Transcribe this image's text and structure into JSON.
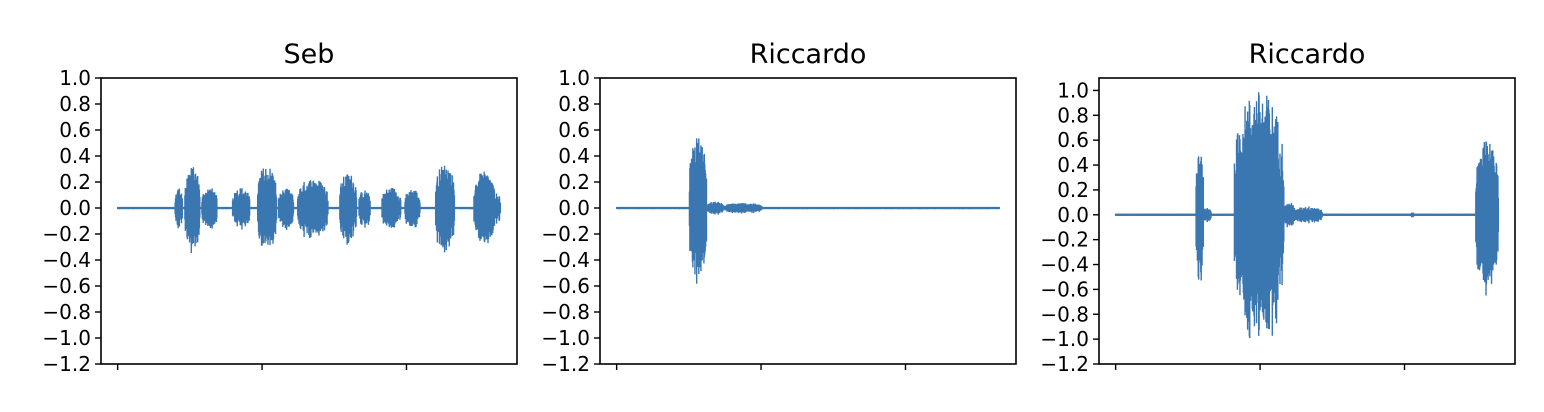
{
  "chart_data": [
    {
      "type": "line",
      "title": "Seb",
      "color": "#3a76b0",
      "ylim": [
        -1.2,
        1.0
      ],
      "yticks": [
        "1.0",
        "0.8",
        "0.6",
        "0.4",
        "0.2",
        "0.0",
        "−0.2",
        "−0.4",
        "−0.6",
        "−0.8",
        "−1.0",
        "−1.2"
      ],
      "xticks_count": 3,
      "xtick_labels_shown": false,
      "grid": false,
      "bursts": [
        {
          "start": 0.15,
          "end": 0.17,
          "amp": 0.16
        },
        {
          "start": 0.175,
          "end": 0.215,
          "amp": 0.32
        },
        {
          "start": 0.22,
          "end": 0.26,
          "amp": 0.16
        },
        {
          "start": 0.3,
          "end": 0.345,
          "amp": 0.16
        },
        {
          "start": 0.365,
          "end": 0.415,
          "amp": 0.33
        },
        {
          "start": 0.42,
          "end": 0.46,
          "amp": 0.15
        },
        {
          "start": 0.47,
          "end": 0.55,
          "amp": 0.23
        },
        {
          "start": 0.58,
          "end": 0.625,
          "amp": 0.27
        },
        {
          "start": 0.63,
          "end": 0.66,
          "amp": 0.14
        },
        {
          "start": 0.69,
          "end": 0.74,
          "amp": 0.16
        },
        {
          "start": 0.75,
          "end": 0.79,
          "amp": 0.15
        },
        {
          "start": 0.83,
          "end": 0.88,
          "amp": 0.34
        },
        {
          "start": 0.93,
          "end": 0.985,
          "amp": 0.28
        },
        {
          "start": 0.985,
          "end": 1.0,
          "amp": 0.12
        }
      ]
    },
    {
      "type": "line",
      "title": "Riccardo",
      "color": "#3a76b0",
      "ylim": [
        -1.2,
        1.0
      ],
      "yticks": [
        "1.0",
        "0.8",
        "0.6",
        "0.4",
        "0.2",
        "0.0",
        "−0.2",
        "−0.4",
        "−0.6",
        "−0.8",
        "−1.0",
        "−1.2"
      ],
      "xticks_count": 3,
      "xtick_labels_shown": false,
      "grid": false,
      "bursts": [
        {
          "start": 0.19,
          "end": 0.235,
          "amp": 0.55
        },
        {
          "start": 0.235,
          "end": 0.28,
          "amp": 0.05
        },
        {
          "start": 0.28,
          "end": 0.38,
          "amp": 0.04
        }
      ]
    },
    {
      "type": "line",
      "title": "Riccardo",
      "color": "#3a76b0",
      "ylim": [
        -1.2,
        1.1
      ],
      "yticks": [
        "1.0",
        "0.8",
        "0.6",
        "0.4",
        "0.2",
        "0.0",
        "−0.2",
        "−0.4",
        "−0.6",
        "−0.8",
        "−1.0",
        "−1.2"
      ],
      "xticks_count": 3,
      "xtick_labels_shown": false,
      "grid": false,
      "bursts": [
        {
          "start": 0.21,
          "end": 0.23,
          "amp": 0.5
        },
        {
          "start": 0.23,
          "end": 0.25,
          "amp": 0.06
        },
        {
          "start": 0.31,
          "end": 0.44,
          "amp": 1.0
        },
        {
          "start": 0.44,
          "end": 0.47,
          "amp": 0.1
        },
        {
          "start": 0.47,
          "end": 0.54,
          "amp": 0.07
        },
        {
          "start": 0.77,
          "end": 0.78,
          "amp": 0.02
        },
        {
          "start": 0.94,
          "end": 1.0,
          "amp": 0.6
        }
      ]
    }
  ]
}
